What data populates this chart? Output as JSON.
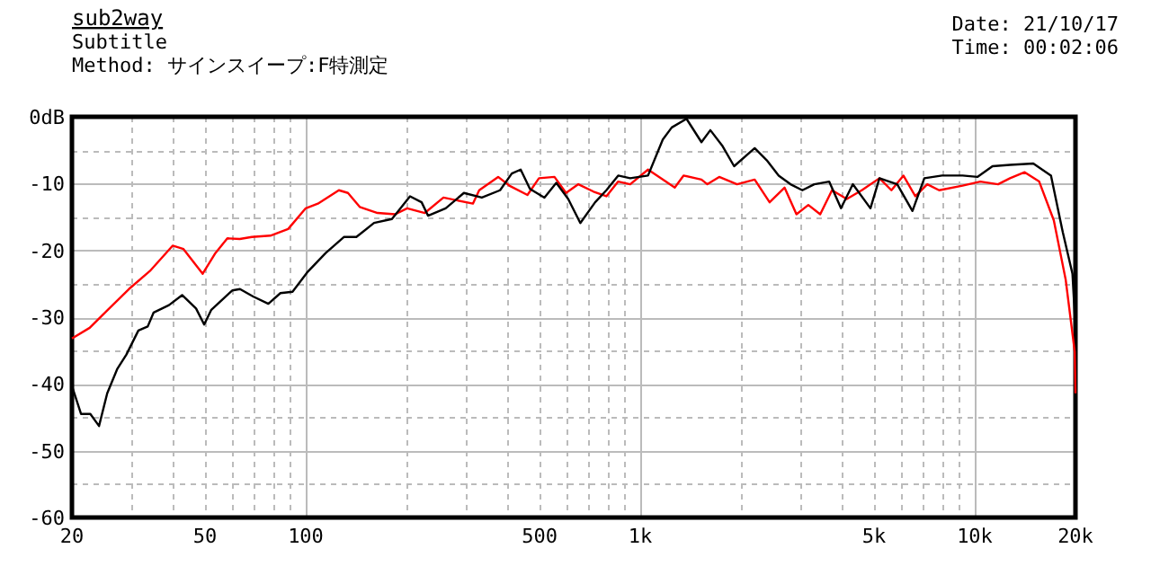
{
  "chart_data": {
    "type": "line",
    "title": "sub2way",
    "subtitle": "Subtitle",
    "annotations": [
      "Method: サインスイープ:F特測定",
      "Date: 21/10/17",
      "Time: 00:02:06"
    ],
    "log": "x",
    "grid": true,
    "line_style": "solid",
    "xlim": [
      20,
      20000
    ],
    "xticks": [
      20,
      50,
      100,
      500,
      {
        "value": 1000,
        "label": "1k"
      },
      {
        "value": 5000,
        "label": "5k"
      },
      {
        "value": 10000,
        "label": "10k"
      },
      {
        "value": 20000,
        "label": "20k"
      }
    ],
    "ylim": [
      -60,
      0
    ],
    "yticks": [
      {
        "value": 0,
        "label": "0dB"
      },
      -10,
      -20,
      -30,
      -40,
      -50,
      -60
    ],
    "series": [
      {
        "color": "#ff0000",
        "x": [
          20,
          22.6,
          25.6,
          29.6,
          34.2,
          40,
          43.1,
          49.2,
          53.7,
          58.3,
          63.5,
          69,
          78.4,
          88.6,
          100,
          108.7,
          125.6,
          133.7,
          145,
          163.9,
          185,
          201,
          227,
          258,
          316,
          330,
          376,
          406,
          460,
          498,
          554,
          600,
          653,
          725,
          792,
          859,
          933,
          1055,
          1192,
          1268,
          1347,
          1524,
          1587,
          1722,
          1947,
          2198,
          2436,
          2700,
          2931,
          3180,
          3451,
          3743,
          4144,
          4594,
          5189,
          5634,
          6119,
          6642,
          7211,
          7826,
          9195,
          10389,
          11741,
          12746,
          14100,
          15580,
          17230,
          18700,
          19900,
          20000
        ],
        "values": [
          -33.2,
          -31.6,
          -28.9,
          -25.8,
          -23.1,
          -19.3,
          -19.8,
          -23.5,
          -20.4,
          -18.2,
          -18.3,
          -18,
          -17.8,
          -16.8,
          -13.7,
          -13,
          -11,
          -11.4,
          -13.5,
          -14.4,
          -14.6,
          -13.7,
          -14.4,
          -12.1,
          -13,
          -11,
          -9,
          -10.3,
          -11.7,
          -9.2,
          -9,
          -11.4,
          -10.1,
          -11.2,
          -11.9,
          -9.7,
          -10.1,
          -7.9,
          -9.7,
          -10.6,
          -8.8,
          -9.4,
          -10.1,
          -9,
          -10.1,
          -9.4,
          -12.8,
          -10.6,
          -14.6,
          -13.2,
          -14.6,
          -11,
          -12.3,
          -11,
          -9.2,
          -11,
          -8.8,
          -11.9,
          -10.1,
          -11,
          -10.3,
          -9.7,
          -10.1,
          -9.2,
          -8.3,
          -9.7,
          -15.5,
          -24.4,
          -35.2,
          -41.4
        ]
      },
      {
        "color": "#000000",
        "x": [
          20,
          21.3,
          22.7,
          24.1,
          25.5,
          27.3,
          29.1,
          31.6,
          33.7,
          35.1,
          39,
          42.7,
          47,
          49.7,
          52.2,
          60.3,
          63.6,
          69.6,
          77.3,
          84,
          91.3,
          101,
          114.7,
          130,
          141.7,
          160,
          181,
          205,
          222,
          232,
          262,
          297,
          336,
          381,
          413,
          439,
          468,
          517,
          561,
          609,
          662,
          733,
          792,
          859,
          933,
          1055,
          1168,
          1242,
          1375,
          1524,
          1620,
          1757,
          1908,
          2198,
          2388,
          2593,
          2813,
          3052,
          3312,
          3670,
          3982,
          4320,
          4877,
          5189,
          5864,
          6513,
          7067,
          7984,
          9195,
          10180,
          11299,
          12746,
          14963,
          16900,
          18330,
          19590,
          20000
        ],
        "values": [
          -40.3,
          -44.5,
          -44.5,
          -46.3,
          -41.4,
          -37.8,
          -35.6,
          -32,
          -31.4,
          -29.3,
          -28.2,
          -26.7,
          -28.7,
          -31.1,
          -28.9,
          -26,
          -25.8,
          -26.9,
          -28,
          -26.4,
          -26.2,
          -23.3,
          -20.4,
          -18,
          -18,
          -15.9,
          -15.3,
          -11.9,
          -12.8,
          -14.8,
          -13.7,
          -11.4,
          -12.1,
          -11,
          -8.5,
          -7.9,
          -10.8,
          -12.1,
          -9.9,
          -12.3,
          -15.9,
          -12.8,
          -11,
          -8.8,
          -9.2,
          -8.8,
          -3.4,
          -1.6,
          -0.3,
          -3.8,
          -2,
          -4.3,
          -7.4,
          -4.7,
          -6.5,
          -8.8,
          -10.1,
          -11,
          -10.1,
          -9.7,
          -13.7,
          -10.1,
          -13.7,
          -9.2,
          -10.1,
          -14.1,
          -9.2,
          -8.8,
          -8.8,
          -9,
          -7.4,
          -7.2,
          -7,
          -8.8,
          -17.3,
          -23.5,
          -31.6
        ]
      }
    ]
  }
}
